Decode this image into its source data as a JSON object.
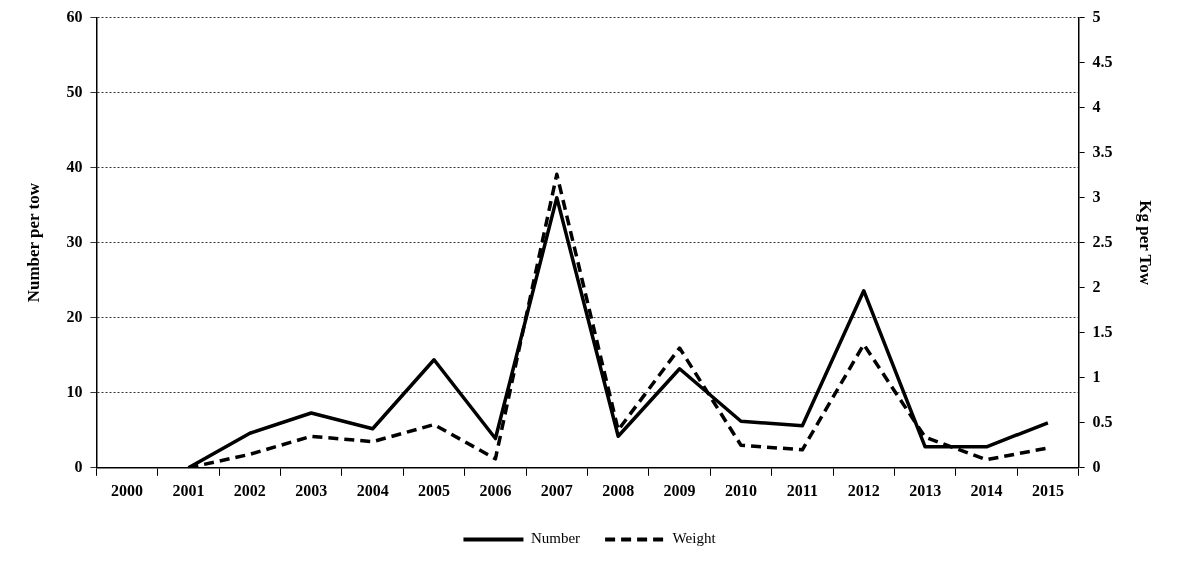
{
  "chart_data": {
    "type": "line",
    "categories": [
      "2000",
      "2001",
      "2002",
      "2003",
      "2004",
      "2005",
      "2006",
      "2007",
      "2008",
      "2009",
      "2010",
      "2011",
      "2012",
      "2013",
      "2014",
      "2015"
    ],
    "series": [
      {
        "name": "Number",
        "color": "#000000",
        "line_style": "solid",
        "values": [
          null,
          0,
          4.6,
          7.3,
          5.2,
          14.4,
          3.9,
          36,
          4.2,
          13.2,
          6.2,
          5.6,
          23.6,
          2.8,
          2.8,
          6
        ]
      },
      {
        "name": "Weight",
        "color": "#000000",
        "line_style": "dashed",
        "axis": "y2",
        "values": [
          null,
          0,
          0.15,
          0.35,
          0.29,
          0.48,
          0.1,
          3.26,
          0.42,
          1.33,
          0.25,
          0.2,
          1.37,
          0.34,
          0.09,
          0.22
        ]
      }
    ],
    "ylabel": "Number per tow",
    "y2label": "Kg per Tow",
    "ylim": [
      0,
      60
    ],
    "yticks": [
      0,
      10,
      20,
      30,
      40,
      50,
      60
    ],
    "y2lim": [
      0,
      5
    ],
    "y2ticks": [
      0,
      0.5,
      1,
      1.5,
      2,
      2.5,
      3,
      3.5,
      4,
      4.5,
      5
    ],
    "grid": "y",
    "legend": "bottom",
    "marker": "none"
  }
}
